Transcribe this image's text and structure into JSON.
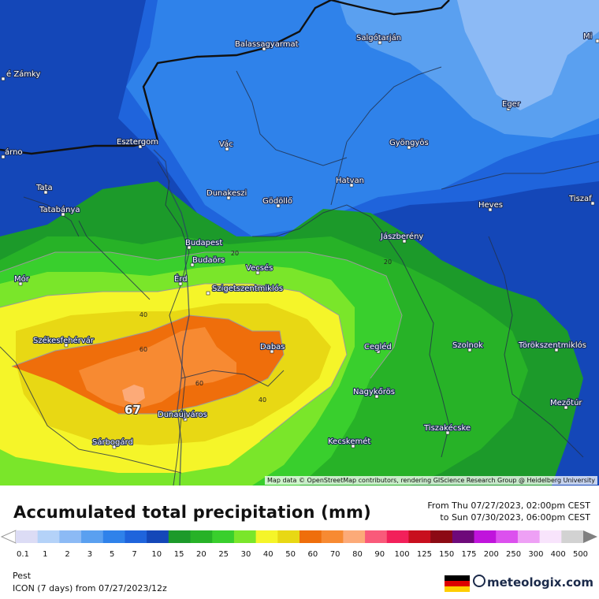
{
  "map": {
    "attribution": "Map data © OpenStreetMap contributors, rendering GIScience Research Group @ Heidelberg University",
    "max_value": "67",
    "isolines": [
      "20",
      "20",
      "40",
      "40",
      "60",
      "60"
    ],
    "cities": [
      {
        "name": "Balassagyarmat"
      },
      {
        "name": "Salgótarján"
      },
      {
        "name": "Mi"
      },
      {
        "name": "é Zámky"
      },
      {
        "name": "Eger"
      },
      {
        "name": "Esztergom"
      },
      {
        "name": "Vác"
      },
      {
        "name": "Gyöngyös"
      },
      {
        "name": "árno"
      },
      {
        "name": "Tata"
      },
      {
        "name": "Dunakeszi"
      },
      {
        "name": "Gödöllő"
      },
      {
        "name": "Hatvan"
      },
      {
        "name": "Tiszaf"
      },
      {
        "name": "Tatabánya"
      },
      {
        "name": "Heves"
      },
      {
        "name": "Budapest"
      },
      {
        "name": "Budaörs"
      },
      {
        "name": "Jászberény"
      },
      {
        "name": "Mór"
      },
      {
        "name": "Érd"
      },
      {
        "name": "Vecsés"
      },
      {
        "name": "Szigetszentmiklós"
      },
      {
        "name": "Székesfehérvár"
      },
      {
        "name": "Dabas"
      },
      {
        "name": "Cegléd"
      },
      {
        "name": "Szolnok"
      },
      {
        "name": "Törökszentmiklós"
      },
      {
        "name": "Nagykőrös"
      },
      {
        "name": "Mezőtúr"
      },
      {
        "name": "Dunaújváros"
      },
      {
        "name": "Tiszakécske"
      },
      {
        "name": "Kecskemét"
      },
      {
        "name": "Sárbogárd"
      }
    ]
  },
  "footer": {
    "title": "Accumulated total precipitation (mm)",
    "period_from": "From Thu 07/27/2023, 02:00pm CEST",
    "period_to": "to Sun 07/30/2023, 06:00pm CEST",
    "location": "Pest",
    "model": "ICON (7 days)  from  07/27/2023/12z",
    "brand": "meteologix.com"
  },
  "legend": {
    "ticks": [
      "0.1",
      "1",
      "2",
      "3",
      "5",
      "7",
      "10",
      "15",
      "20",
      "25",
      "30",
      "40",
      "50",
      "60",
      "70",
      "80",
      "90",
      "100",
      "125",
      "150",
      "175",
      "200",
      "250",
      "300",
      "400",
      "500"
    ],
    "colors": [
      "#dcdcf5",
      "#b4d2f8",
      "#8cbaf5",
      "#5aa0f0",
      "#2f82ea",
      "#1f64dc",
      "#1447b8",
      "#1c9a2a",
      "#27b227",
      "#39cf2d",
      "#7ae62a",
      "#f5f529",
      "#e8d814",
      "#ef6e0b",
      "#f78a32",
      "#fcaa78",
      "#f95a7a",
      "#f2205a",
      "#c80f1e",
      "#8c0a14",
      "#6e0a7a",
      "#c014dc",
      "#dc50ee",
      "#eea0f5",
      "#f8e4fc",
      "#d2d2d2"
    ]
  }
}
